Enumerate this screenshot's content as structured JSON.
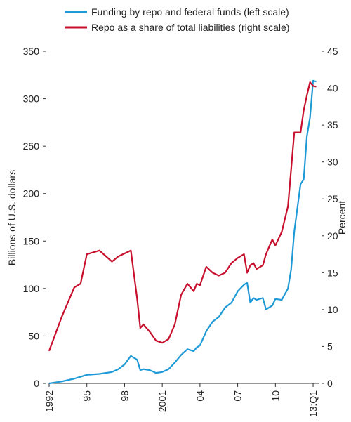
{
  "chart_data": {
    "type": "line",
    "x": [
      1992,
      1993,
      1994,
      1994.5,
      1995,
      1996,
      1997,
      1997.5,
      1998,
      1998.5,
      1999,
      1999.25,
      1999.5,
      2000,
      2000.5,
      2001,
      2001.5,
      2002,
      2002.5,
      2003,
      2003.5,
      2003.75,
      2004,
      2004.5,
      2005,
      2005.5,
      2006,
      2006.5,
      2007,
      2007.5,
      2007.75,
      2008,
      2008.25,
      2008.5,
      2009,
      2009.25,
      2009.75,
      2010,
      2010.5,
      2011,
      2011.25,
      2011.5,
      2012,
      2012.25,
      2012.5,
      2012.75,
      2013,
      2013.25
    ],
    "series": [
      {
        "name": "Funding by repo and federal funds (left scale)",
        "color": "#1e9ad6",
        "values": [
          0,
          2,
          5,
          7,
          9,
          10,
          12,
          15,
          20,
          29,
          25,
          14,
          15,
          14,
          11,
          12,
          15,
          22,
          30,
          36,
          34,
          38,
          40,
          55,
          65,
          70,
          80,
          85,
          97,
          104,
          106,
          85,
          90,
          88,
          90,
          78,
          82,
          89,
          88,
          100,
          120,
          160,
          210,
          215,
          260,
          280,
          319,
          318
        ]
      },
      {
        "name": "Repo as a share of total liabilities (right scale)",
        "color": "#c8102e",
        "axis": "y2",
        "values": [
          4.4,
          9,
          13,
          13.5,
          17.5,
          18,
          16.5,
          17.2,
          17.6,
          18,
          11.5,
          7.5,
          8,
          7,
          5.8,
          5.5,
          6,
          8,
          12,
          13.5,
          12.5,
          13.5,
          13.3,
          15.8,
          15,
          14.6,
          15,
          16.3,
          17,
          17.5,
          15,
          16,
          16.3,
          15.5,
          16,
          17.5,
          19.5,
          18.7,
          20.5,
          24,
          29,
          34,
          34,
          37,
          39,
          40.8,
          40.3,
          40.2
        ]
      }
    ],
    "xlim": [
      1992,
      2013.5
    ],
    "xticks": [
      {
        "value": 1992,
        "label": "1992"
      },
      {
        "value": 1995,
        "label": "95"
      },
      {
        "value": 1998,
        "label": "98"
      },
      {
        "value": 2001,
        "label": "2001"
      },
      {
        "value": 2004,
        "label": "04"
      },
      {
        "value": 2007,
        "label": "07"
      },
      {
        "value": 2010,
        "label": "10"
      },
      {
        "value": 2013,
        "label": "13:Q1"
      }
    ],
    "ylim": [
      0,
      350
    ],
    "yticks": [
      0,
      50,
      100,
      150,
      200,
      250,
      300,
      350
    ],
    "y2lim": [
      0,
      45
    ],
    "y2ticks": [
      0,
      5,
      10,
      15,
      20,
      25,
      30,
      35,
      40,
      45
    ],
    "ylabel": "Billions of U.S. dollars",
    "y2label": "Percent"
  }
}
